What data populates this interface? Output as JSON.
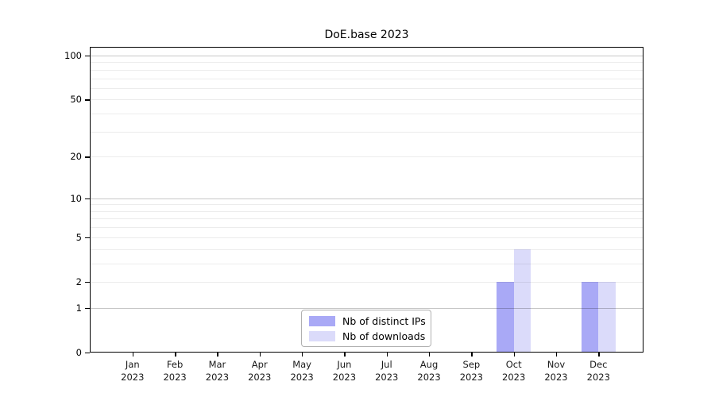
{
  "title": "DoE.base 2023",
  "chart_data": {
    "type": "bar",
    "title": "DoE.base 2023",
    "categories": [
      "Jan",
      "Feb",
      "Mar",
      "Apr",
      "May",
      "Jun",
      "Jul",
      "Aug",
      "Sep",
      "Oct",
      "Nov",
      "Dec"
    ],
    "category_year": "2023",
    "series": [
      {
        "name": "Nb of distinct IPs",
        "color": "#a9a9f6",
        "values": [
          0,
          0,
          0,
          0,
          0,
          0,
          0,
          0,
          0,
          2,
          0,
          2
        ]
      },
      {
        "name": "Nb of downloads",
        "color": "#dbdbfa",
        "values": [
          0,
          0,
          0,
          0,
          0,
          0,
          0,
          0,
          0,
          4,
          0,
          2
        ]
      }
    ],
    "yticks": [
      0,
      1,
      2,
      5,
      10,
      20,
      50,
      100
    ],
    "major_gridlines": [
      1,
      10,
      100
    ],
    "minor_gridlines": [
      2,
      3,
      4,
      5,
      6,
      7,
      8,
      9,
      20,
      30,
      40,
      50,
      60,
      70,
      80,
      90
    ],
    "scale": "log(1+v)",
    "ylim": [
      0,
      100
    ],
    "xlabel": "",
    "ylabel": "",
    "grid": true,
    "legend_position": "lower center"
  },
  "colors": {
    "bar_distinct_ips": "#a9a9f6",
    "bar_downloads": "#dbdbfa",
    "axis": "#000000",
    "gridline_major": "#c8c8c8",
    "gridline_minor": "#ececec",
    "legend_border": "#b0b0b0"
  }
}
